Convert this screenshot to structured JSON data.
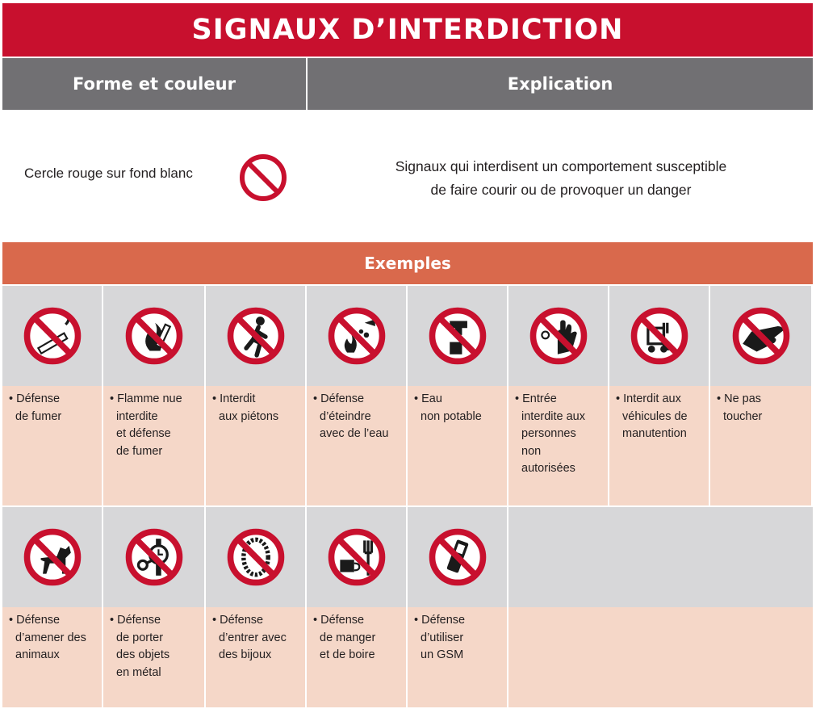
{
  "title": "SIGNAUX D’INTERDICTION",
  "header": {
    "left": "Forme et couleur",
    "right": "Explication"
  },
  "shape": {
    "text": "Cercle rouge sur fond blanc",
    "icon": "prohibition-circle-icon"
  },
  "explanation": {
    "line1": "Signaux qui interdisent un comportement susceptible",
    "line2": "de faire courir ou de provoquer un danger"
  },
  "examples_header": "Exemples",
  "colors": {
    "red": "#c8102e",
    "grey_header": "#717073",
    "orange_header": "#d9694c",
    "icon_bg": "#d7d7d9",
    "text_bg": "#f5d7c8"
  },
  "examples": [
    {
      "icon": "no-smoking-icon",
      "lines": [
        "• Défense",
        "de fumer"
      ]
    },
    {
      "icon": "no-open-flame-icon",
      "lines": [
        "• Flamme nue",
        "interdite",
        "et défense",
        "de fumer"
      ]
    },
    {
      "icon": "no-pedestrians-icon",
      "lines": [
        "• Interdit",
        "aux piétons"
      ]
    },
    {
      "icon": "no-water-extinguishing-icon",
      "lines": [
        "• Défense",
        "d’éteindre",
        "avec de l’eau"
      ]
    },
    {
      "icon": "non-potable-water-icon",
      "lines": [
        "• Eau",
        "non potable"
      ]
    },
    {
      "icon": "no-unauthorized-entry-icon",
      "lines": [
        "• Entrée",
        "interdite aux",
        "personnes",
        "non",
        "autorisées"
      ]
    },
    {
      "icon": "no-forklifts-icon",
      "lines": [
        "• Interdit aux",
        "véhicules de",
        "manutention"
      ]
    },
    {
      "icon": "do-not-touch-icon",
      "lines": [
        "• Ne pas",
        "toucher"
      ]
    },
    {
      "icon": "no-animals-icon",
      "lines": [
        "• Défense",
        "d’amener des",
        "animaux"
      ]
    },
    {
      "icon": "no-metal-objects-icon",
      "lines": [
        "• Défense",
        "de porter",
        "des objets",
        "en métal"
      ]
    },
    {
      "icon": "no-jewelry-icon",
      "lines": [
        "• Défense",
        "d’entrer avec",
        "des bijoux"
      ]
    },
    {
      "icon": "no-eating-drinking-icon",
      "lines": [
        "• Défense",
        "de manger",
        "et de boire"
      ]
    },
    {
      "icon": "no-mobile-phone-icon",
      "lines": [
        "• Défense",
        "d’utiliser",
        "un GSM"
      ]
    }
  ]
}
